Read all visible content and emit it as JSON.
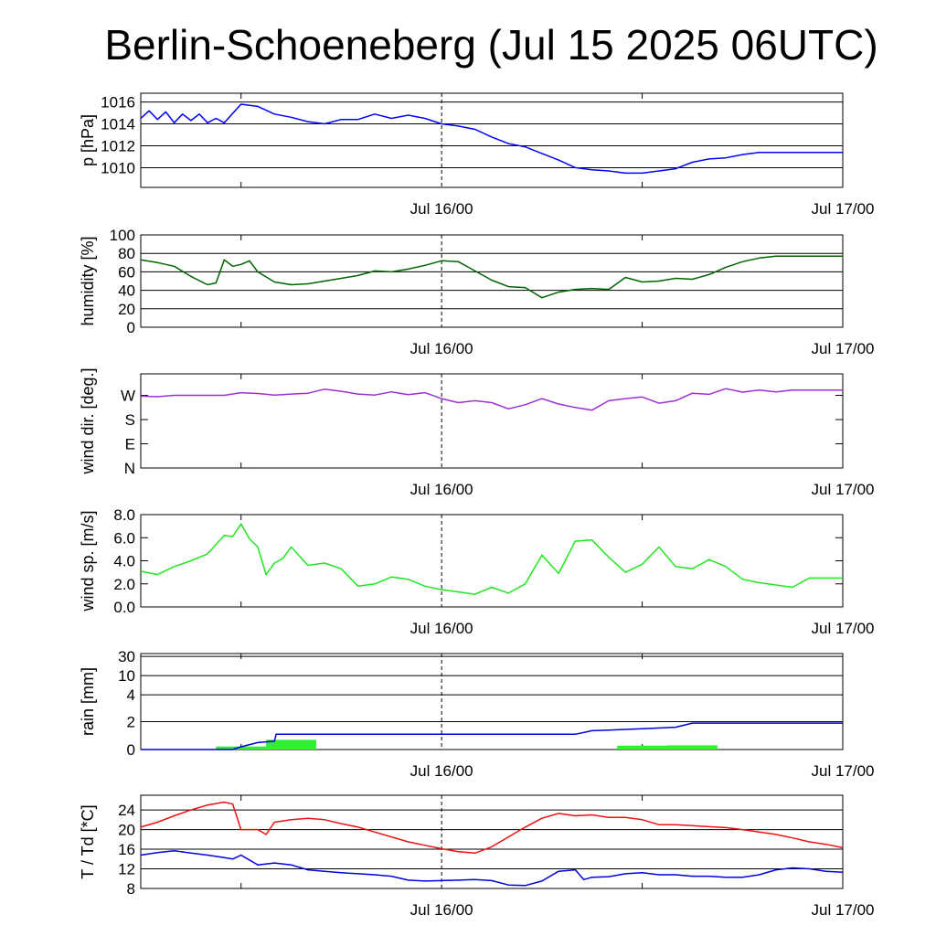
{
  "title": "Berlin-Schoeneberg (Jul 15 2025 06UTC)",
  "colors": {
    "pressure": "#0000ff",
    "humidity": "#006400",
    "wind_dir": "#9b30d9",
    "wind_speed": "#22e622",
    "rain_bar": "#33ee33",
    "rain_cum": "#0000dd",
    "temperature": "#ee1111",
    "dewpoint": "#0000dd"
  },
  "chart_data": [
    {
      "type": "line",
      "id": "pressure",
      "ylabel": "p [hPa]",
      "ylim": [
        1008.2,
        1016.8
      ],
      "yticks": [
        1010,
        1012,
        1014,
        1016
      ],
      "ytick_labels": [
        "1010",
        "1012",
        "1014",
        "1016"
      ],
      "xtick_labels": [
        "Jul 16/00",
        "Jul 17/00"
      ],
      "grid": true,
      "series": [
        {
          "color_key": "pressure",
          "x": [
            0,
            0.5,
            1,
            1.5,
            2,
            2.5,
            3,
            3.5,
            4,
            4.5,
            5,
            6,
            7,
            8,
            9,
            10,
            11,
            12,
            13,
            14,
            15,
            16,
            17,
            18,
            19,
            20,
            21,
            22,
            23,
            24,
            25,
            26,
            27,
            28,
            29,
            30,
            31,
            32,
            33,
            34,
            35,
            36,
            37,
            38,
            39,
            40,
            41,
            42
          ],
          "values": [
            1014.5,
            1015.2,
            1014.4,
            1015.1,
            1014.1,
            1014.9,
            1014.3,
            1014.9,
            1014.1,
            1014.5,
            1014.1,
            1015.8,
            1015.6,
            1014.9,
            1014.6,
            1014.2,
            1014.0,
            1014.4,
            1014.4,
            1014.9,
            1014.5,
            1014.8,
            1014.5,
            1014.0,
            1013.8,
            1013.5,
            1012.8,
            1012.2,
            1011.9,
            1011.3,
            1010.7,
            1010.0,
            1009.8,
            1009.7,
            1009.5,
            1009.5,
            1009.7,
            1009.9,
            1010.5,
            1010.8,
            1010.9,
            1011.2,
            1011.4,
            1011.4,
            1011.4,
            1011.4,
            1011.4,
            1011.4
          ]
        }
      ]
    },
    {
      "type": "line",
      "id": "humidity",
      "ylabel": "humidity [%]",
      "ylim": [
        0,
        100
      ],
      "yticks": [
        0,
        20,
        40,
        60,
        80,
        100
      ],
      "ytick_labels": [
        "0",
        "20",
        "40",
        "60",
        "80",
        "100"
      ],
      "xtick_labels": [
        "Jul 16/00",
        "Jul 17/00"
      ],
      "grid": true,
      "series": [
        {
          "color_key": "humidity",
          "x": [
            0,
            1,
            2,
            3,
            4,
            4.5,
            5,
            5.5,
            6,
            6.5,
            7,
            8,
            9,
            10,
            11,
            12,
            13,
            14,
            15,
            16,
            17,
            18,
            19,
            20,
            21,
            22,
            23,
            24,
            25,
            26,
            27,
            28,
            29,
            30,
            31,
            32,
            33,
            34,
            35,
            36,
            37,
            38,
            39,
            40,
            41,
            42
          ],
          "values": [
            73,
            70,
            66,
            55,
            46,
            48,
            73,
            66,
            68,
            72,
            60,
            49,
            46,
            47,
            50,
            53,
            56,
            61,
            60,
            63,
            67,
            72,
            71,
            61,
            51,
            44,
            43,
            32,
            38,
            41,
            42,
            41,
            54,
            49,
            50,
            53,
            52,
            57,
            65,
            71,
            75,
            77,
            77,
            77,
            77,
            77
          ]
        }
      ]
    },
    {
      "type": "line",
      "id": "wind_dir",
      "ylabel": "wind dir. [deg.]",
      "ylim": [
        0,
        350
      ],
      "yticks": [
        0,
        90,
        180,
        270
      ],
      "ytick_labels": [
        "N",
        "E",
        "S",
        "W"
      ],
      "xtick_labels": [
        "Jul 16/00",
        "Jul 17/00"
      ],
      "grid": false,
      "series": [
        {
          "color_key": "wind_dir",
          "x": [
            0,
            1,
            2,
            3,
            4,
            5,
            6,
            7,
            8,
            9,
            10,
            11,
            12,
            13,
            14,
            15,
            16,
            17,
            18,
            19,
            20,
            21,
            22,
            23,
            24,
            25,
            26,
            27,
            28,
            29,
            30,
            31,
            32,
            33,
            34,
            35,
            36,
            37,
            38,
            39,
            40,
            41,
            42
          ],
          "values": [
            267,
            265,
            270,
            270,
            270,
            270,
            280,
            277,
            271,
            275,
            278,
            293,
            285,
            275,
            271,
            283,
            273,
            280,
            258,
            243,
            250,
            243,
            220,
            235,
            258,
            238,
            225,
            215,
            250,
            258,
            264,
            241,
            250,
            278,
            274,
            295,
            282,
            290,
            283,
            290,
            290,
            290,
            290
          ]
        }
      ]
    },
    {
      "type": "line",
      "id": "wind_speed",
      "ylabel": "wind sp. [m/s]",
      "ylim": [
        0,
        8
      ],
      "yticks": [
        0,
        2,
        4,
        6,
        8
      ],
      "ytick_labels": [
        "0.0",
        "2.0",
        "4.0",
        "6.0",
        "8.0"
      ],
      "xtick_labels": [
        "Jul 16/00",
        "Jul 17/00"
      ],
      "grid": false,
      "series": [
        {
          "color_key": "wind_speed",
          "x": [
            0,
            1,
            2,
            3,
            4,
            5,
            5.5,
            6,
            6.5,
            7,
            7.5,
            8,
            8.5,
            9,
            10,
            11,
            12,
            13,
            14,
            15,
            16,
            17,
            18,
            19,
            20,
            21,
            22,
            23,
            24,
            25,
            26,
            27,
            28,
            29,
            30,
            31,
            32,
            33,
            34,
            35,
            36,
            37,
            38,
            39,
            40,
            41,
            42
          ],
          "values": [
            3.1,
            2.8,
            3.5,
            4.0,
            4.6,
            6.2,
            6.1,
            7.2,
            5.9,
            5.2,
            2.8,
            3.8,
            4.2,
            5.2,
            3.6,
            3.8,
            3.3,
            1.8,
            2.0,
            2.6,
            2.4,
            1.8,
            1.5,
            1.3,
            1.1,
            1.7,
            1.2,
            2.0,
            4.5,
            2.9,
            5.7,
            5.8,
            4.3,
            3.0,
            3.7,
            5.2,
            3.5,
            3.3,
            4.1,
            3.5,
            2.4,
            2.1,
            1.9,
            1.7,
            2.5,
            2.5,
            2.5
          ]
        }
      ]
    },
    {
      "type": "bar+line",
      "id": "rain",
      "ylabel": "rain [mm]",
      "ylim": [
        0,
        31
      ],
      "yticks": [
        0,
        2,
        4,
        10,
        30
      ],
      "ytick_labels": [
        "0",
        "2",
        "4",
        "10",
        "30"
      ],
      "xtick_labels": [
        "Jul 16/00",
        "Jul 17/00"
      ],
      "grid": true,
      "bars": [
        {
          "x0": 4.5,
          "x1": 7.5,
          "value": 0.22
        },
        {
          "x0": 7.5,
          "x1": 10.5,
          "value": 0.7
        },
        {
          "x0": 28.5,
          "x1": 31.5,
          "value": 0.28
        },
        {
          "x0": 31.5,
          "x1": 34.5,
          "value": 0.3
        }
      ],
      "series": [
        {
          "color_key": "rain_cum",
          "x": [
            0,
            5.5,
            6,
            7,
            8,
            8.1,
            26,
            27,
            28,
            30,
            32,
            33,
            42
          ],
          "values": [
            0,
            0,
            0.2,
            0.5,
            0.6,
            1.1,
            1.1,
            1.35,
            1.4,
            1.5,
            1.6,
            1.9,
            1.9
          ]
        }
      ]
    },
    {
      "type": "line",
      "id": "temperature",
      "ylabel": "T / Td [*C]",
      "ylim": [
        8,
        27
      ],
      "yticks": [
        8,
        12,
        16,
        20,
        24
      ],
      "ytick_labels": [
        "8",
        "12",
        "16",
        "20",
        "24"
      ],
      "xtick_labels": [
        "Jul 16/00",
        "Jul 17/00"
      ],
      "grid": true,
      "series": [
        {
          "color_key": "temperature",
          "x": [
            0,
            1,
            2,
            3,
            4,
            5,
            5.5,
            6,
            7,
            7.5,
            8,
            9,
            10,
            11,
            12,
            13,
            14,
            15,
            16,
            17,
            18,
            19,
            20,
            21,
            22,
            23,
            24,
            25,
            26,
            27,
            28,
            29,
            30,
            31,
            32,
            33,
            34,
            35,
            36,
            37,
            38,
            39,
            40,
            41,
            42
          ],
          "values": [
            20.5,
            21.5,
            22.8,
            24.0,
            25.0,
            25.6,
            25.2,
            20.0,
            20.0,
            19.0,
            21.5,
            22.0,
            22.3,
            22.0,
            21.2,
            20.5,
            19.5,
            18.5,
            17.5,
            16.8,
            16.1,
            15.5,
            15.2,
            16.5,
            18.5,
            20.5,
            22.3,
            23.3,
            22.8,
            23.0,
            22.5,
            22.5,
            22.0,
            21.0,
            21.0,
            20.8,
            20.6,
            20.4,
            20.0,
            19.5,
            19.0,
            18.3,
            17.5,
            17.0,
            16.3
          ]
        },
        {
          "color_key": "dewpoint",
          "x": [
            0,
            1,
            2,
            3,
            4,
            5,
            5.5,
            6,
            7,
            8,
            9,
            10,
            11,
            12,
            13,
            14,
            15,
            16,
            17,
            18,
            19,
            20,
            21,
            22,
            23,
            24,
            25,
            26,
            26.5,
            27,
            28,
            29,
            30,
            31,
            32,
            33,
            34,
            35,
            36,
            37,
            38,
            39,
            40,
            41,
            42
          ],
          "values": [
            14.8,
            15.3,
            15.7,
            15.2,
            14.8,
            14.3,
            14.0,
            14.8,
            12.8,
            13.2,
            12.8,
            11.8,
            11.5,
            11.2,
            11.0,
            10.8,
            10.5,
            9.7,
            9.5,
            9.6,
            9.7,
            9.8,
            9.6,
            8.7,
            8.6,
            9.5,
            11.5,
            11.8,
            9.8,
            10.3,
            10.4,
            11.0,
            11.2,
            10.8,
            10.8,
            10.5,
            10.5,
            10.3,
            10.3,
            10.8,
            11.8,
            12.2,
            12.0,
            11.5,
            11.3
          ]
        }
      ]
    }
  ]
}
